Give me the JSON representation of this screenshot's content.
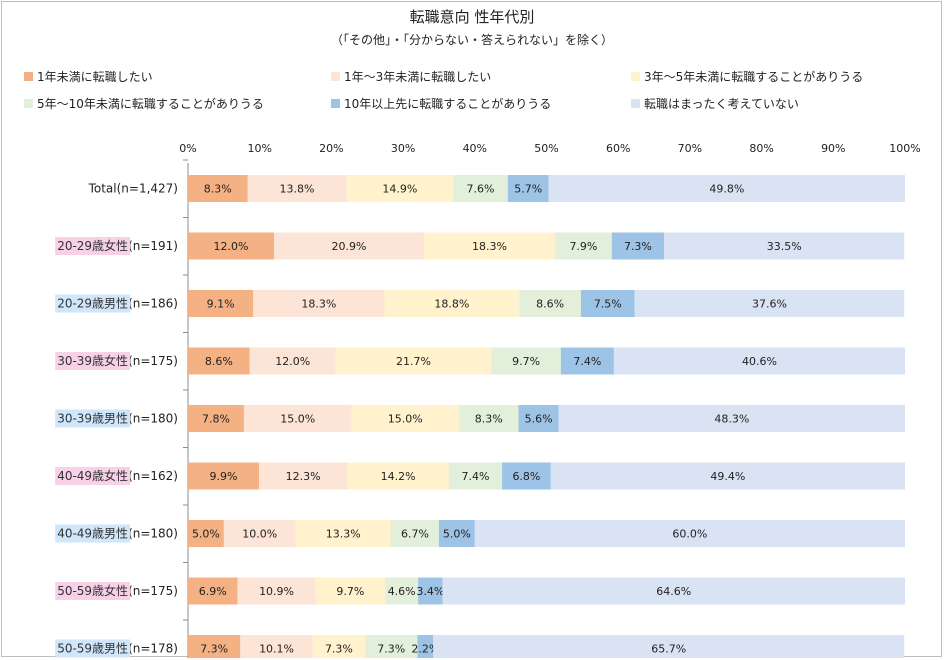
{
  "chart_data": {
    "type": "bar",
    "orientation": "horizontal",
    "stacked": "percent",
    "title": "転職意向 性年代別",
    "subtitle": "（「その他」・「分からない・答えられない」を除く）",
    "legend_position": "top",
    "grid": false,
    "xlim": [
      0,
      100
    ],
    "x_ticks": [
      "0%",
      "10%",
      "20%",
      "30%",
      "40%",
      "50%",
      "60%",
      "70%",
      "80%",
      "90%",
      "100%"
    ],
    "categories": [
      {
        "label": "Total",
        "n": "(n=1,427)",
        "highlight": ""
      },
      {
        "label": "20-29歳女性",
        "n": "(n=191)",
        "highlight": "female"
      },
      {
        "label": "20-29歳男性",
        "n": "(n=186)",
        "highlight": "male"
      },
      {
        "label": "30-39歳女性",
        "n": "(n=175)",
        "highlight": "female"
      },
      {
        "label": "30-39歳男性",
        "n": "(n=180)",
        "highlight": "male"
      },
      {
        "label": "40-49歳女性",
        "n": "(n=162)",
        "highlight": "female"
      },
      {
        "label": "40-49歳男性",
        "n": "(n=180)",
        "highlight": "male"
      },
      {
        "label": "50-59歳女性",
        "n": "(n=175)",
        "highlight": "female"
      },
      {
        "label": "50-59歳男性",
        "n": "(n=178)",
        "highlight": "male"
      }
    ],
    "series": [
      {
        "name": "1年未満に転職したい",
        "color": "#f4b183",
        "values": [
          8.3,
          12.0,
          9.1,
          8.6,
          7.8,
          9.9,
          5.0,
          6.9,
          7.3
        ]
      },
      {
        "name": "1年～3年未満に転職したい",
        "color": "#fce4d6",
        "values": [
          13.8,
          20.9,
          18.3,
          12.0,
          15.0,
          12.3,
          10.0,
          10.9,
          10.1
        ]
      },
      {
        "name": "3年～5年未満に転職することがありうる",
        "color": "#fff2cc",
        "values": [
          14.9,
          18.3,
          18.8,
          21.7,
          15.0,
          14.2,
          13.3,
          9.7,
          7.3
        ]
      },
      {
        "name": "5年～10年未満に転職することがありうる",
        "color": "#e2efda",
        "values": [
          7.6,
          7.9,
          8.6,
          9.7,
          8.3,
          7.4,
          6.7,
          4.6,
          7.3
        ]
      },
      {
        "name": "10年以上先に転職することがありうる",
        "color": "#9dc3e6",
        "values": [
          5.7,
          7.3,
          7.5,
          7.4,
          5.6,
          6.8,
          5.0,
          3.4,
          2.2
        ]
      },
      {
        "name": "転職はまったく考えていない",
        "color": "#dae3f3",
        "values": [
          49.8,
          33.5,
          37.6,
          40.6,
          48.3,
          49.4,
          60.0,
          64.6,
          65.7
        ]
      }
    ],
    "highlight_colors": {
      "female": "#f8d0e8",
      "male": "#cfe6fb"
    },
    "label_decimals": 1
  }
}
